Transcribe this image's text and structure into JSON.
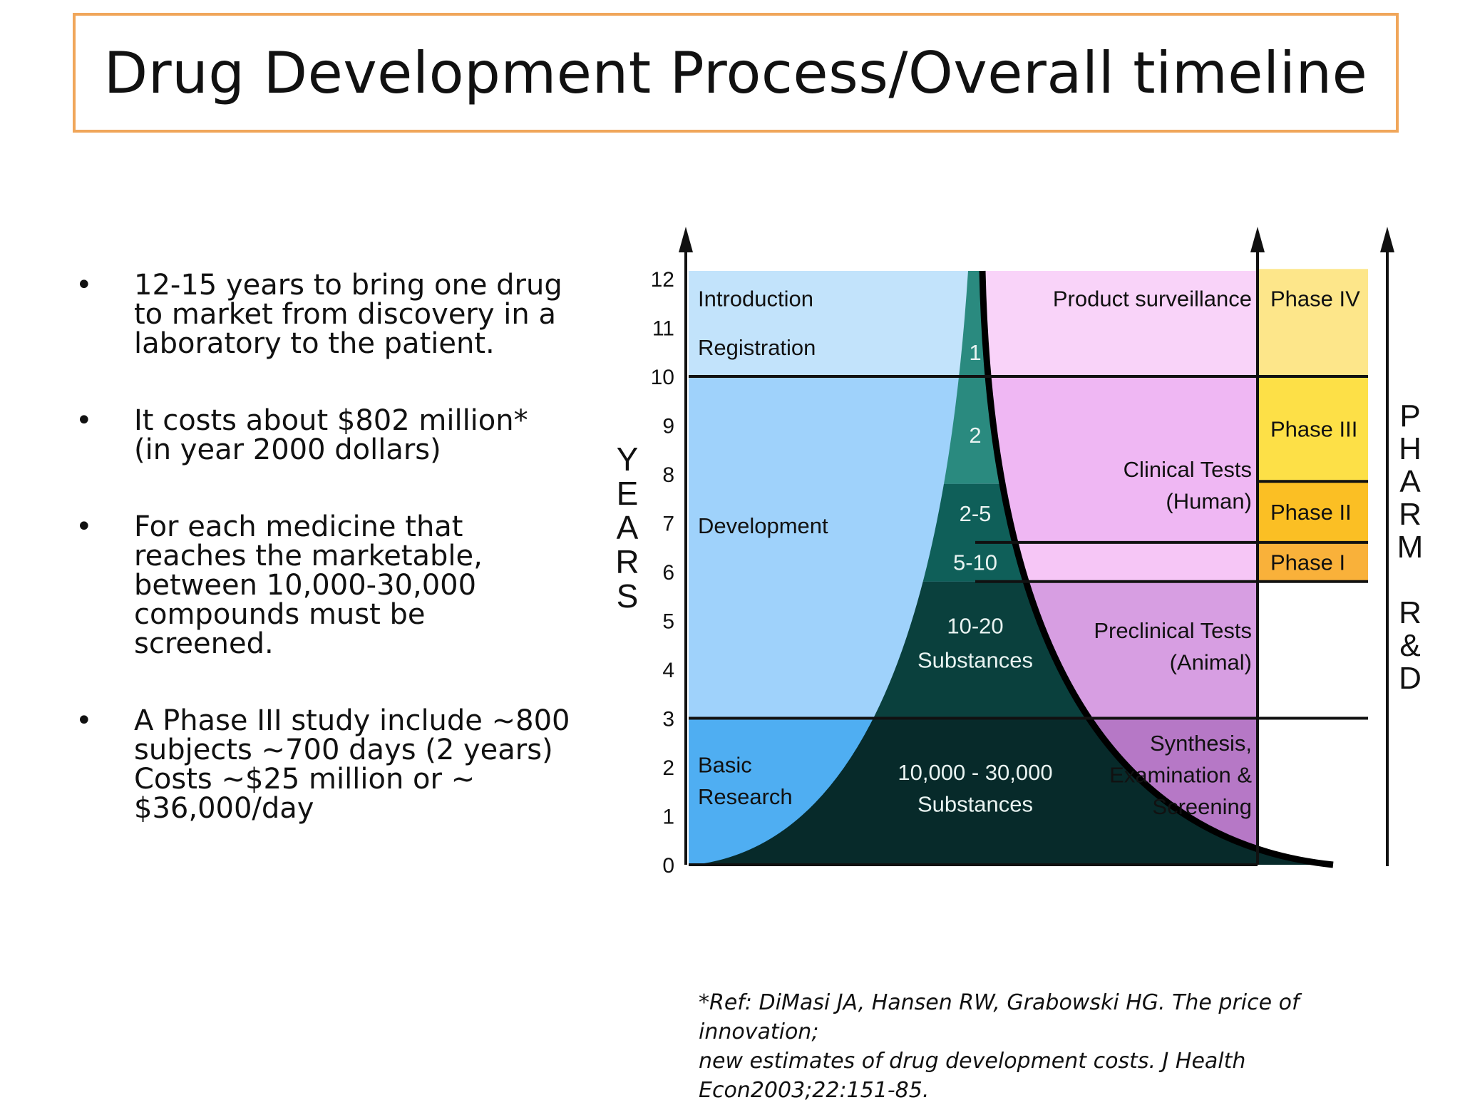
{
  "title": "Drug Development Process/Overall timeline",
  "bullets": [
    {
      "lines": [
        "12-15 years to bring one drug",
        "to market from discovery in a",
        "laboratory to the patient."
      ]
    },
    {
      "lines": [
        "It costs about $802 million*",
        "(in year 2000 dollars)"
      ]
    },
    {
      "lines": [
        "For each medicine that",
        "reaches the marketable,",
        "between 10,000-30,000",
        "compounds must be",
        "screened."
      ]
    },
    {
      "lines": [
        "A Phase III study include ~800",
        "subjects ~700 days (2 years)",
        "Costs ~$25 million or ~",
        "$36,000/day"
      ]
    }
  ],
  "bullet_symbol": "•",
  "diagram": {
    "years_label": [
      "Y",
      "E",
      "A",
      "R",
      "S"
    ],
    "pharm_label": [
      "P",
      "H",
      "A",
      "R",
      "M",
      "",
      "R",
      "&",
      "D"
    ],
    "ticks": [
      "0",
      "1",
      "2",
      "3",
      "4",
      "5",
      "6",
      "7",
      "8",
      "9",
      "10",
      "11",
      "12"
    ],
    "left_stages": [
      {
        "text": "Introduction",
        "year": 11.6
      },
      {
        "text": "Registration",
        "year": 10.6
      },
      {
        "text": "Development",
        "year": 6.95
      },
      {
        "text": "Basic",
        "year": 2.05
      },
      {
        "text": "Research",
        "year": 1.4
      }
    ],
    "funnel_counts": [
      {
        "text": "1",
        "year": 10.5
      },
      {
        "text": "2",
        "year": 8.8
      },
      {
        "text": "2-5",
        "year": 7.2
      },
      {
        "text": "5-10",
        "year": 6.2
      },
      {
        "text": "10-20",
        "year": 4.9
      },
      {
        "text": "Substances",
        "year": 4.2
      },
      {
        "text": "10,000 - 30,000",
        "year": 1.9
      },
      {
        "text": "Substances",
        "year": 1.25
      }
    ],
    "right_stages": [
      {
        "text": "Product surveillance",
        "year": 11.6
      },
      {
        "text": "Clinical Tests",
        "year": 8.1
      },
      {
        "text": "(Human)",
        "year": 7.45
      },
      {
        "text": "Preclinical Tests",
        "year": 4.8
      },
      {
        "text": "(Animal)",
        "year": 4.15
      },
      {
        "text": "Synthesis,",
        "year": 2.5
      },
      {
        "text": "Examination &",
        "year": 1.85
      },
      {
        "text": "Screening",
        "year": 1.2
      }
    ],
    "phases": [
      {
        "text": "Phase IV",
        "from": 10,
        "to": 12.2,
        "color": "#fde68a"
      },
      {
        "text": "Phase III",
        "from": 7.85,
        "to": 10,
        "color": "#fde047"
      },
      {
        "text": "Phase II",
        "from": 6.6,
        "to": 7.85,
        "color": "#fbbf24"
      },
      {
        "text": "Phase I",
        "from": 5.8,
        "to": 6.6,
        "color": "#f9b13a"
      }
    ],
    "colors": {
      "left_top": "#c2e3fb",
      "left_mid": "#9fd2fb",
      "left_bottom": "#4faef2",
      "right_top": "#f9d3f9",
      "right_clinical": "#efb7f3",
      "right_phase1": "#f6c6f6",
      "right_preclinical": "#d79ee2",
      "right_bottom": "#b678c6",
      "funnel_top": "#2a8a7f",
      "funnel_mid": "#0f5f59",
      "funnel_low": "#0a403d",
      "funnel_bottom": "#072a2a"
    }
  },
  "reference": {
    "lines": [
      "*Ref: DiMasi JA, Hansen RW, Grabowski HG. The price of innovation;",
      "new estimates of drug development costs. J Health",
      "Econ2003;22:151-85."
    ]
  }
}
